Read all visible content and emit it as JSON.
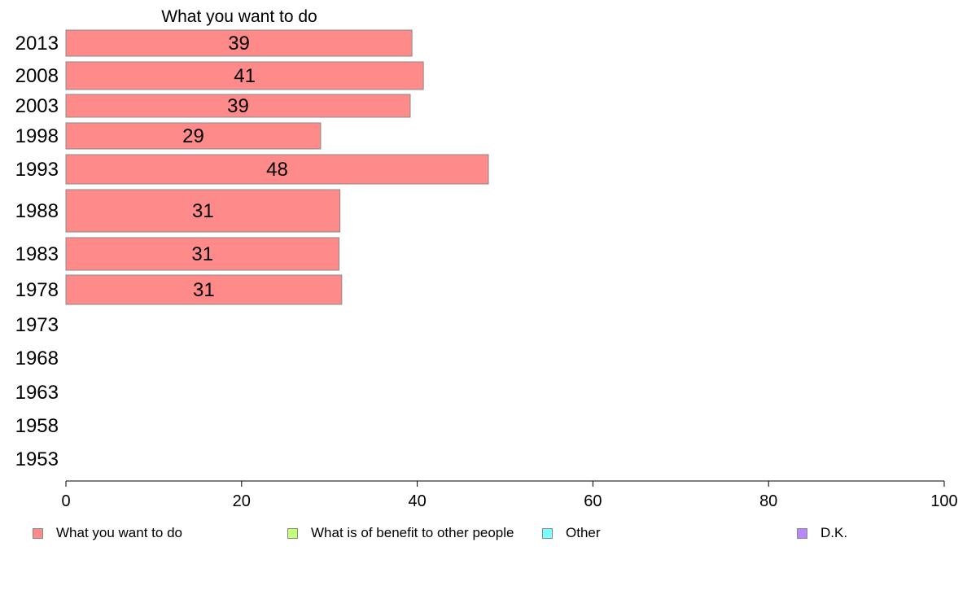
{
  "chart_data": {
    "type": "bar",
    "orientation": "horizontal",
    "title": "What you want to do",
    "categories": [
      "2013",
      "2008",
      "2003",
      "1998",
      "1993",
      "1988",
      "1983",
      "1978",
      "1973",
      "1968",
      "1963",
      "1958",
      "1953"
    ],
    "series": [
      {
        "name": "What you want to do",
        "color": "#ff8a8a",
        "values": [
          39.4,
          40.7,
          39.2,
          29.0,
          48.1,
          31.2,
          31.1,
          31.4,
          null,
          null,
          null,
          null,
          null
        ],
        "labels": [
          "39",
          "41",
          "39",
          "29",
          "48",
          "31",
          "31",
          "31",
          "",
          "",
          "",
          "",
          ""
        ]
      }
    ],
    "legend": [
      {
        "name": "What you want to do",
        "color": "#ff8a8a"
      },
      {
        "name": "What is of benefit to other people",
        "color": "#c5ff7a"
      },
      {
        "name": "Other",
        "color": "#7affff"
      },
      {
        "name": "D.K.",
        "color": "#b887ff"
      }
    ],
    "xlim": [
      0,
      100
    ],
    "xticks": [
      0,
      20,
      40,
      60,
      80,
      100
    ],
    "grid": false,
    "legend_position": "bottom"
  }
}
